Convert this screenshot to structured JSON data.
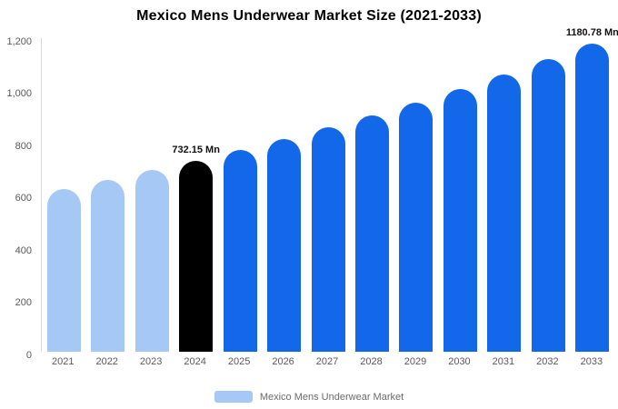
{
  "chart_data": {
    "type": "bar",
    "title": "Mexico Mens Underwear Market Size (2021-2033)",
    "categories": [
      "2021",
      "2022",
      "2023",
      "2024",
      "2025",
      "2026",
      "2027",
      "2028",
      "2029",
      "2030",
      "2031",
      "2032",
      "2033"
    ],
    "values": [
      624,
      658,
      694,
      732.15,
      772,
      814,
      858,
      905,
      954,
      1006,
      1061,
      1119,
      1180.78
    ],
    "unit": "Mn",
    "xlabel": "",
    "ylabel": "",
    "ylim": [
      0,
      1200
    ],
    "ytick_values": [
      0,
      200,
      400,
      600,
      800,
      1000,
      1200
    ],
    "ytick_labels": [
      "0",
      "200",
      "400",
      "600",
      "800",
      "1,000",
      "1,200"
    ],
    "grid": false,
    "legend_position": "bottom",
    "colors": {
      "historical": "#a5c9f4",
      "highlight": "#000000",
      "forecast": "#1268e9"
    },
    "bar_color_keys": [
      "historical",
      "historical",
      "historical",
      "highlight",
      "forecast",
      "forecast",
      "forecast",
      "forecast",
      "forecast",
      "forecast",
      "forecast",
      "forecast",
      "forecast"
    ],
    "annotations": [
      {
        "index": 3,
        "text": "732.15 Mn"
      },
      {
        "index": 12,
        "text": "1180.78 Mn"
      }
    ],
    "legend": [
      {
        "label": "Mexico Mens Underwear Market",
        "color": "#a5c9f4"
      }
    ]
  }
}
